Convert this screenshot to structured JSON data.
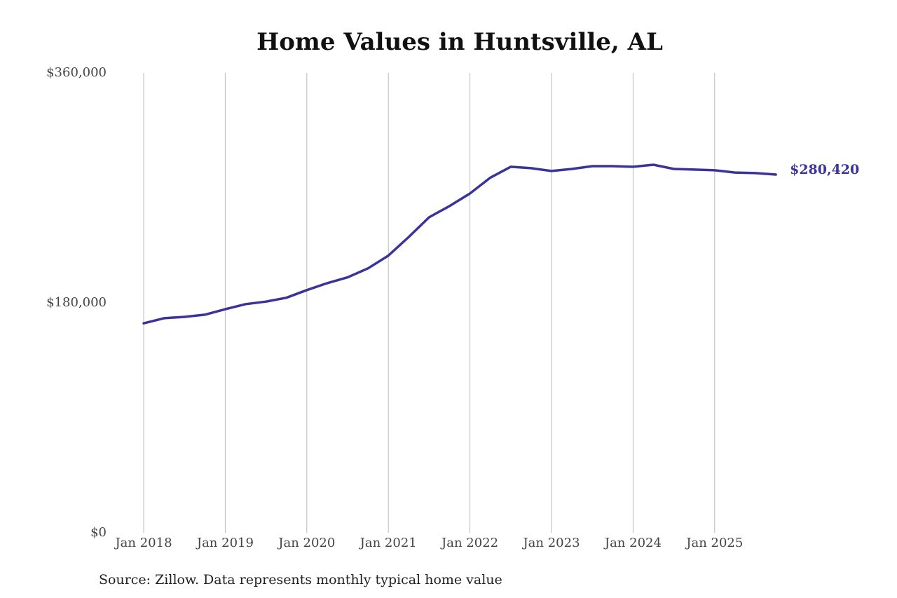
{
  "chart_data": {
    "type": "line",
    "title": "Home Values in Huntsville, AL",
    "source": "Source: Zillow. Data represents monthly typical home value",
    "x": [
      "2018-01",
      "2018-04",
      "2018-07",
      "2018-10",
      "2019-01",
      "2019-04",
      "2019-07",
      "2019-10",
      "2020-01",
      "2020-04",
      "2020-07",
      "2020-10",
      "2021-01",
      "2021-04",
      "2021-07",
      "2021-10",
      "2022-01",
      "2022-04",
      "2022-07",
      "2022-10",
      "2023-01",
      "2023-04",
      "2023-07",
      "2023-10",
      "2024-01",
      "2024-04",
      "2024-07",
      "2024-10",
      "2025-01",
      "2025-04",
      "2025-07",
      "2025-10"
    ],
    "series": [
      {
        "name": "Huntsville, AL",
        "color": "#3a3399",
        "values": [
          164000,
          168000,
          169000,
          170700,
          175000,
          179000,
          181000,
          184000,
          190000,
          195400,
          200000,
          207000,
          217000,
          231600,
          247000,
          255800,
          265600,
          278000,
          286500,
          285400,
          283200,
          284800,
          287000,
          287000,
          286500,
          288100,
          284800,
          284300,
          283800,
          282000,
          281600,
          280420
        ],
        "value_labels": [
          null,
          null,
          null,
          null,
          null,
          null,
          null,
          null,
          null,
          null,
          null,
          null,
          null,
          null,
          null,
          null,
          null,
          null,
          null,
          null,
          null,
          null,
          null,
          null,
          null,
          null,
          null,
          null,
          null,
          null,
          null,
          "$280,420"
        ]
      }
    ],
    "ylim": [
      0,
      360000
    ],
    "yticks": [
      {
        "value": 0,
        "label": "$0"
      },
      {
        "value": 180000,
        "label": "$180,000"
      },
      {
        "value": 360000,
        "label": "$360,000"
      }
    ],
    "xticks": [
      {
        "value": "2018-01",
        "label": "Jan 2018"
      },
      {
        "value": "2019-01",
        "label": "Jan 2019"
      },
      {
        "value": "2020-01",
        "label": "Jan 2020"
      },
      {
        "value": "2021-01",
        "label": "Jan 2021"
      },
      {
        "value": "2022-01",
        "label": "Jan 2022"
      },
      {
        "value": "2023-01",
        "label": "Jan 2023"
      },
      {
        "value": "2024-01",
        "label": "Jan 2024"
      },
      {
        "value": "2025-01",
        "label": "Jan 2025"
      }
    ],
    "grid": "x"
  }
}
